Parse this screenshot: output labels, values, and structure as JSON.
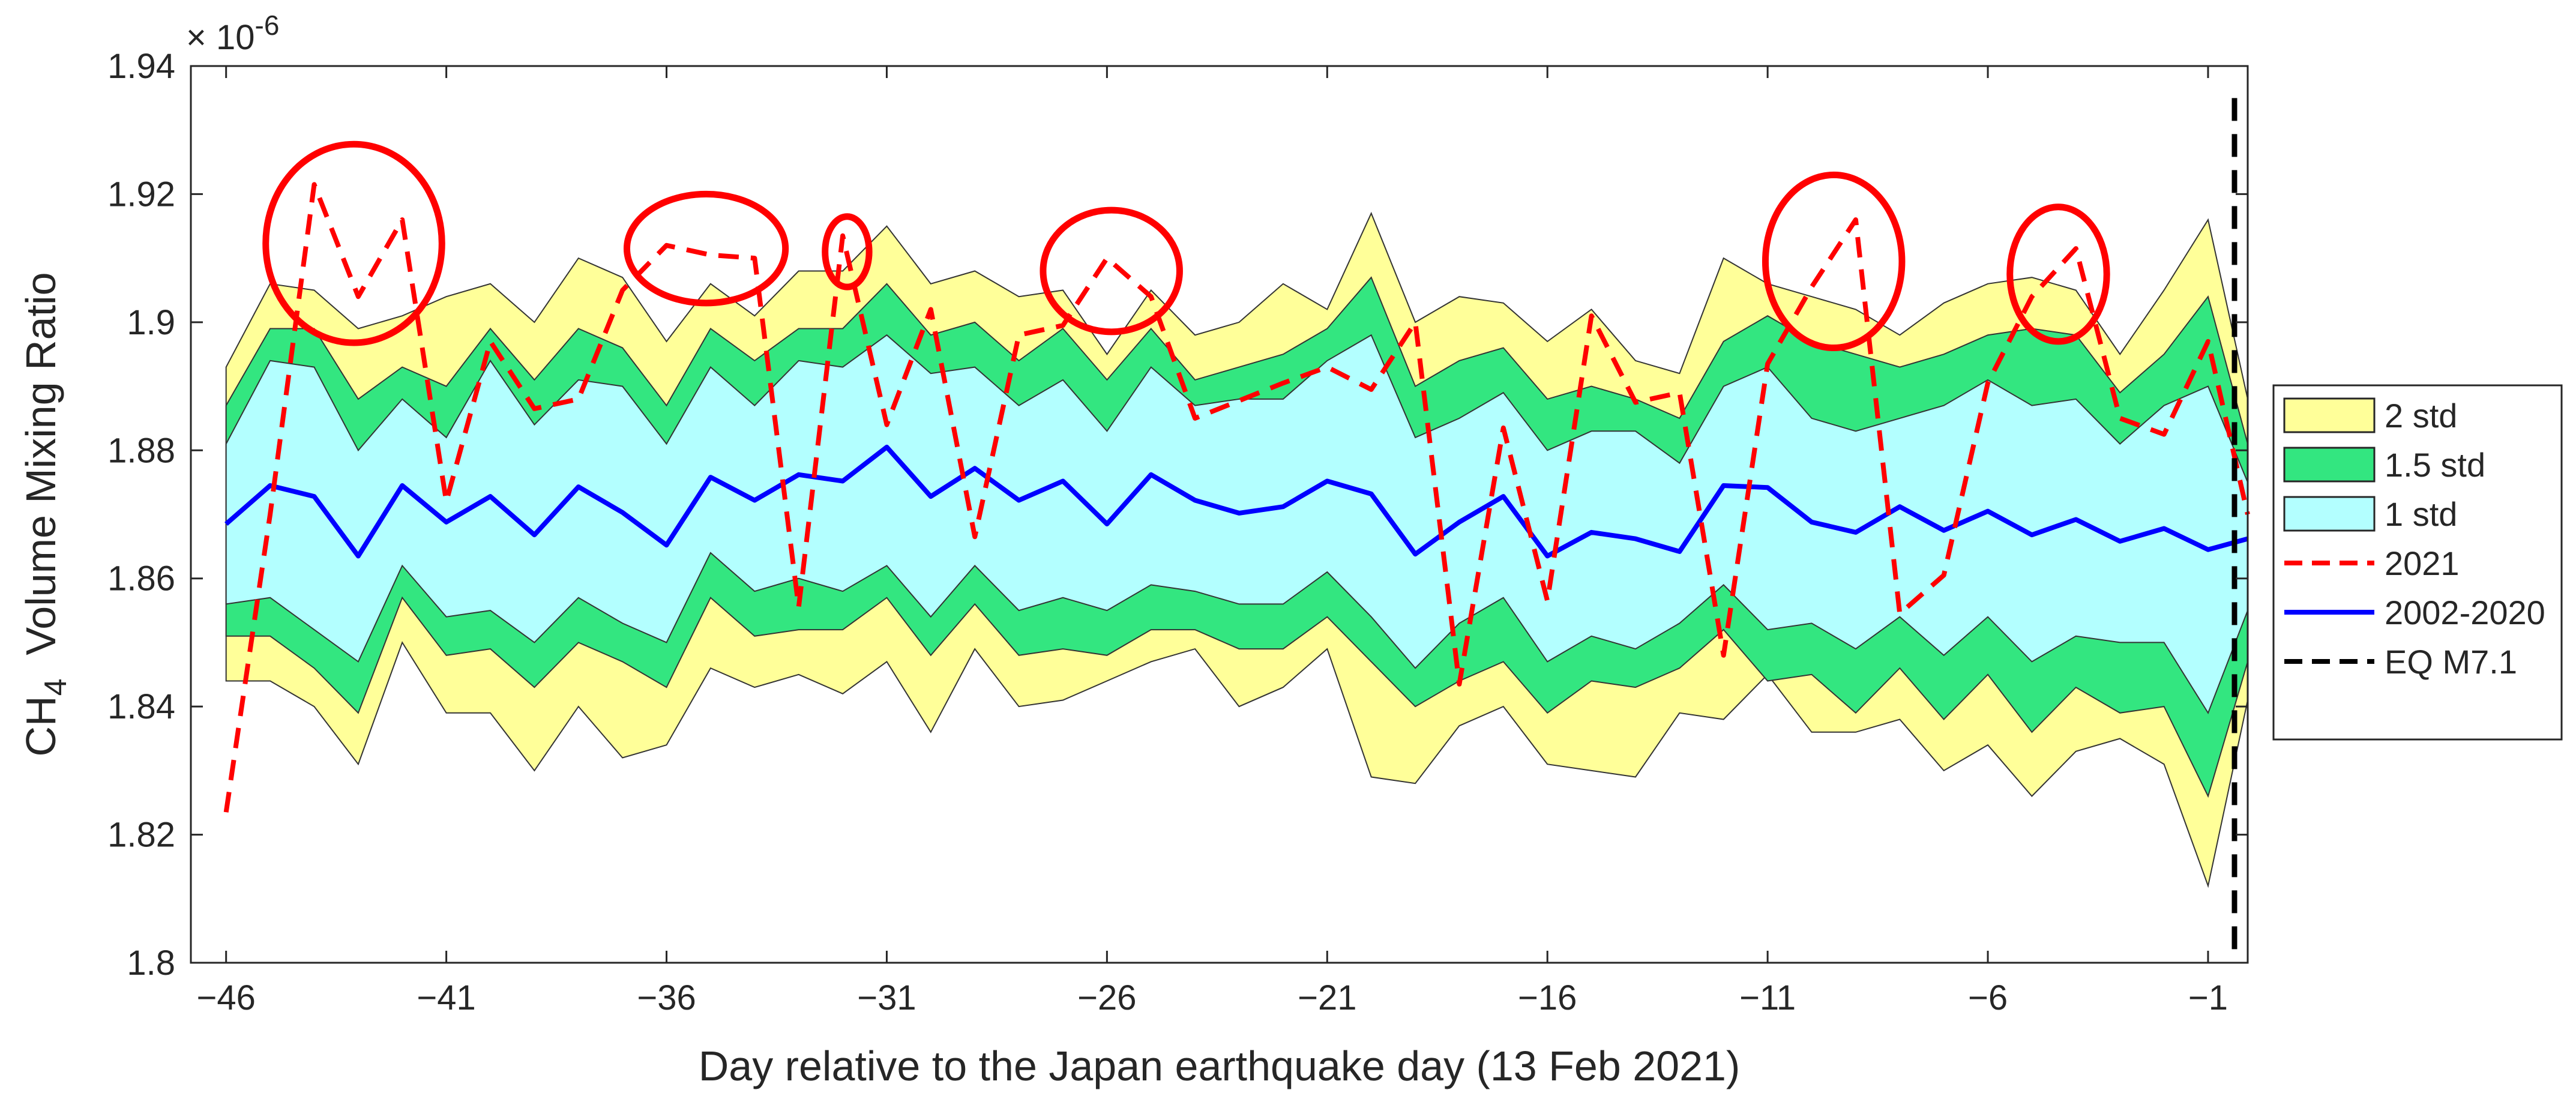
{
  "chart_data": {
    "type": "area",
    "xlabel": "Day relative to the Japan earthquake day (13 Feb 2021)",
    "ylabel_main": "CH",
    "ylabel_sub": "4",
    "ylabel_rest": "  Volume Mixing Ratio",
    "scale_base": "× 10",
    "scale_exp": "-6",
    "xlim": [
      -46.8,
      -0.1
    ],
    "ylim": [
      1.8,
      1.94
    ],
    "xticks": [
      -46,
      -41,
      -36,
      -31,
      -26,
      -21,
      -16,
      -11,
      -6,
      -1
    ],
    "xtick_labels": [
      "−46",
      "−41",
      "−36",
      "−31",
      "−26",
      "−21",
      "−16",
      "−11",
      "−6",
      "−1"
    ],
    "yticks": [
      1.8,
      1.82,
      1.84,
      1.86,
      1.88,
      1.9,
      1.92,
      1.94
    ],
    "ytick_labels": [
      "1.8",
      "1.82",
      "1.84",
      "1.86",
      "1.88",
      "1.9",
      "1.92",
      "1.94"
    ],
    "x": [
      -46,
      -45,
      -44,
      -43,
      -42,
      -41,
      -40,
      -39,
      -38,
      -37,
      -36,
      -35,
      -34,
      -33,
      -32,
      -31,
      -30,
      -29,
      -28,
      -27,
      -26,
      -25,
      -24,
      -23,
      -22,
      -21,
      -20,
      -19,
      -18,
      -17,
      -16,
      -15,
      -14,
      -13,
      -12,
      -11,
      -10,
      -9,
      -8,
      -7,
      -6,
      -5,
      -4,
      -3,
      -2,
      -1,
      -0.1
    ],
    "mean_2002_2020": [
      1.8685,
      1.8745,
      1.8728,
      1.8635,
      1.8745,
      1.8688,
      1.8728,
      1.8668,
      1.8743,
      1.8703,
      1.8652,
      1.8758,
      1.8722,
      1.8762,
      1.8752,
      1.8805,
      1.8728,
      1.8772,
      1.8722,
      1.8752,
      1.8685,
      1.8762,
      1.8722,
      1.8702,
      1.8712,
      1.8752,
      1.8732,
      1.8638,
      1.8688,
      1.8728,
      1.8635,
      1.8672,
      1.8662,
      1.8642,
      1.8745,
      1.8742,
      1.8688,
      1.8672,
      1.8712,
      1.8675,
      1.8705,
      1.8668,
      1.8692,
      1.8658,
      1.8678,
      1.8645,
      1.8662
    ],
    "series_2021": [
      1.8235,
      1.87,
      1.9215,
      1.904,
      1.916,
      1.872,
      1.897,
      1.8865,
      1.888,
      1.905,
      1.912,
      1.9105,
      1.91,
      1.8555,
      1.9135,
      1.884,
      1.902,
      1.8665,
      1.898,
      1.8995,
      1.91,
      1.904,
      1.885,
      null,
      1.8905,
      1.893,
      1.8895,
      1.9,
      1.8435,
      1.8835,
      1.8565,
      1.901,
      1.8875,
      1.889,
      1.848,
      1.8935,
      1.9055,
      1.916,
      1.8545,
      1.8605,
      1.8905,
      1.904,
      1.9115,
      1.885,
      1.8825,
      1.897,
      1.87
    ],
    "std1_upper": [
      1.881,
      1.894,
      1.893,
      1.88,
      1.888,
      1.882,
      1.894,
      1.884,
      1.891,
      1.89,
      1.881,
      1.893,
      1.887,
      1.894,
      1.893,
      1.898,
      1.892,
      1.893,
      1.887,
      1.891,
      1.883,
      1.893,
      1.887,
      1.888,
      1.888,
      1.894,
      1.898,
      1.882,
      1.885,
      1.889,
      1.88,
      1.883,
      1.883,
      1.878,
      1.89,
      1.893,
      1.885,
      1.883,
      1.885,
      1.887,
      1.891,
      1.887,
      1.888,
      1.881,
      1.887,
      1.89,
      1.875
    ],
    "std1_lower": [
      1.856,
      1.857,
      1.852,
      1.847,
      1.862,
      1.854,
      1.855,
      1.85,
      1.857,
      1.853,
      1.85,
      1.864,
      1.858,
      1.86,
      1.858,
      1.862,
      1.854,
      1.862,
      1.855,
      1.857,
      1.855,
      1.859,
      1.858,
      1.856,
      1.856,
      1.861,
      1.854,
      1.846,
      1.853,
      1.857,
      1.847,
      1.851,
      1.849,
      1.853,
      1.859,
      1.852,
      1.853,
      1.849,
      1.854,
      1.848,
      1.854,
      1.847,
      1.851,
      1.85,
      1.85,
      1.839,
      1.855
    ],
    "std15_upper": [
      1.887,
      1.899,
      1.899,
      1.888,
      1.893,
      1.89,
      1.899,
      1.891,
      1.899,
      1.896,
      1.887,
      1.899,
      1.894,
      1.899,
      1.899,
      1.906,
      1.898,
      1.9,
      1.894,
      1.899,
      1.891,
      1.899,
      1.891,
      1.893,
      1.895,
      1.899,
      1.907,
      1.89,
      1.894,
      1.896,
      1.888,
      1.89,
      1.888,
      1.885,
      1.897,
      1.901,
      1.897,
      1.895,
      1.893,
      1.895,
      1.898,
      1.899,
      1.898,
      1.889,
      1.895,
      1.904,
      1.881
    ],
    "std15_lower": [
      1.851,
      1.851,
      1.846,
      1.839,
      1.857,
      1.848,
      1.849,
      1.843,
      1.85,
      1.847,
      1.843,
      1.857,
      1.851,
      1.852,
      1.852,
      1.857,
      1.848,
      1.856,
      1.848,
      1.849,
      1.848,
      1.852,
      1.852,
      1.849,
      1.849,
      1.854,
      1.847,
      1.84,
      1.844,
      1.847,
      1.839,
      1.844,
      1.843,
      1.846,
      1.852,
      1.844,
      1.845,
      1.839,
      1.846,
      1.838,
      1.845,
      1.836,
      1.843,
      1.839,
      1.84,
      1.826,
      1.847
    ],
    "std2_upper": [
      1.893,
      1.906,
      1.905,
      1.899,
      1.901,
      1.904,
      1.906,
      1.9,
      1.91,
      1.907,
      1.897,
      1.906,
      1.901,
      1.908,
      1.908,
      1.915,
      1.906,
      1.908,
      1.904,
      1.905,
      1.895,
      1.905,
      1.898,
      1.9,
      1.906,
      1.902,
      1.917,
      1.9,
      1.904,
      1.903,
      1.897,
      1.902,
      1.894,
      1.892,
      1.91,
      1.906,
      1.904,
      1.902,
      1.898,
      1.903,
      1.906,
      1.907,
      1.905,
      1.895,
      1.905,
      1.916,
      1.888
    ],
    "std2_lower": [
      1.844,
      1.844,
      1.84,
      1.831,
      1.85,
      1.839,
      1.839,
      1.83,
      1.84,
      1.832,
      1.834,
      1.846,
      1.843,
      1.845,
      1.842,
      1.847,
      1.836,
      1.849,
      1.84,
      1.841,
      1.844,
      1.847,
      1.849,
      1.84,
      1.843,
      1.849,
      1.829,
      1.828,
      1.837,
      1.84,
      1.831,
      1.83,
      1.829,
      1.839,
      1.838,
      1.845,
      1.836,
      1.836,
      1.838,
      1.83,
      1.834,
      1.826,
      1.833,
      1.835,
      1.831,
      1.812,
      1.841
    ],
    "eq_day": -0.4,
    "legend": [
      {
        "label": "2 std",
        "kind": "patch",
        "color": "#ffff99"
      },
      {
        "label": "1.5 std",
        "kind": "patch",
        "color": "#33e680"
      },
      {
        "label": "1 std",
        "kind": "patch",
        "color": "#b3ffff"
      },
      {
        "label": "2021",
        "kind": "line",
        "color": "#ff0000",
        "dash": "dashed"
      },
      {
        "label": "2002-2020",
        "kind": "line",
        "color": "#0000ff",
        "dash": "solid"
      },
      {
        "label": "EQ M7.1",
        "kind": "line",
        "color": "#000000",
        "dash": "dashed"
      }
    ],
    "legend_position": "right, outside",
    "highlight_ellipses": [
      {
        "cx": -43.1,
        "cy": 1.9123,
        "rx": 2.0,
        "ry": 0.0155
      },
      {
        "cx": -35.1,
        "cy": 1.9115,
        "rx": 1.8,
        "ry": 0.0085
      },
      {
        "cx": -31.9,
        "cy": 1.911,
        "rx": 0.5,
        "ry": 0.0055
      },
      {
        "cx": -25.9,
        "cy": 1.908,
        "rx": 1.55,
        "ry": 0.0095
      },
      {
        "cx": -9.5,
        "cy": 1.9095,
        "rx": 1.55,
        "ry": 0.0135
      },
      {
        "cx": -4.4,
        "cy": 1.9075,
        "rx": 1.1,
        "ry": 0.0105
      }
    ],
    "grid": false
  }
}
